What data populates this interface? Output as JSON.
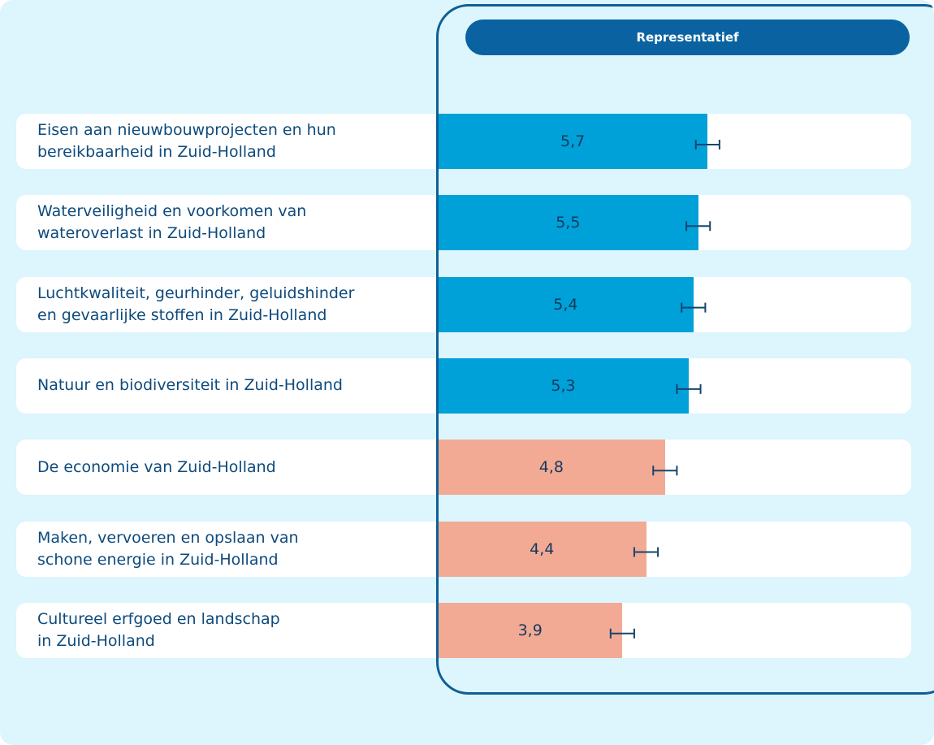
{
  "chart_data": {
    "type": "bar",
    "orientation": "horizontal",
    "column_header": "Representatief",
    "categories": [
      "Eisen aan nieuwbouwprojecten en hun\nbereikbaarheid in Zuid-Holland",
      "Waterveiligheid en voorkomen van\nwateroverlast in Zuid-Holland",
      "Luchtkwaliteit, geurhinder, geluidshinder\nen gevaarlijke stoffen in Zuid-Holland",
      "Natuur en biodiversiteit in Zuid-Holland",
      "De economie van Zuid-Holland",
      "Maken, vervoeren en opslaan van\nschone energie in Zuid-Holland",
      "Cultureel erfgoed en landschap\nin Zuid-Holland"
    ],
    "values": [
      5.7,
      5.5,
      5.4,
      5.3,
      4.8,
      4.4,
      3.9
    ],
    "value_labels": [
      "5,7",
      "5,5",
      "5,4",
      "5,3",
      "4,8",
      "4,4",
      "3,9"
    ],
    "errors": [
      0.25,
      0.25,
      0.25,
      0.25,
      0.25,
      0.25,
      0.25
    ],
    "colors": [
      "#00a0d8",
      "#00a0d8",
      "#00a0d8",
      "#00a0d8",
      "#f2aa95",
      "#f2aa95",
      "#f2aa95"
    ],
    "xlim": [
      0,
      10
    ]
  }
}
